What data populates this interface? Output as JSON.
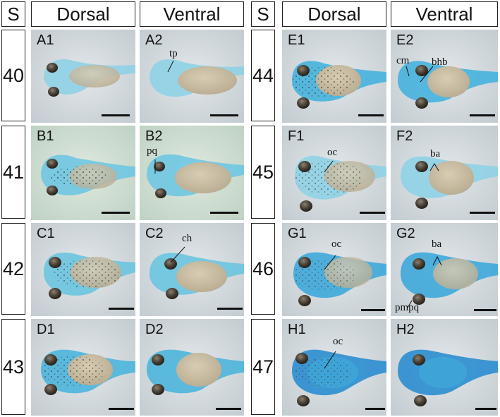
{
  "headers": {
    "stage_left": "S",
    "dorsal_left": "Dorsal",
    "ventral_left": "Ventral",
    "stage_right": "S",
    "dorsal_right": "Dorsal",
    "ventral_right": "Ventral"
  },
  "stages": {
    "left": [
      "40",
      "41",
      "42",
      "43"
    ],
    "right": [
      "44",
      "45",
      "46",
      "47"
    ]
  },
  "panels": {
    "A1": "A1",
    "A2": "A2",
    "B1": "B1",
    "B2": "B2",
    "C1": "C1",
    "C2": "C2",
    "D1": "D1",
    "D2": "D2",
    "E1": "E1",
    "E2": "E2",
    "F1": "F1",
    "F2": "F2",
    "G1": "G1",
    "G2": "G2",
    "H1": "H1",
    "H2": "H2"
  },
  "annotations": {
    "tp": "tp",
    "pq": "pq",
    "ch": "ch",
    "cm": "cm",
    "bhb": "bhb",
    "oc_f1": "oc",
    "ba_f2": "ba",
    "oc_g1": "oc",
    "ba_g2": "ba",
    "pmpq": "pmpq",
    "oc_h1": "oc"
  },
  "colors": {
    "background_light": "#cfd8dc",
    "background_green": "#cfe0d4",
    "tadpole_blue": "#4fb6da",
    "tadpole_deep_blue": "#2f8fd0",
    "yolk": "#cbbfa4",
    "eye": "#4a4237",
    "scale_bar": "#111111"
  }
}
